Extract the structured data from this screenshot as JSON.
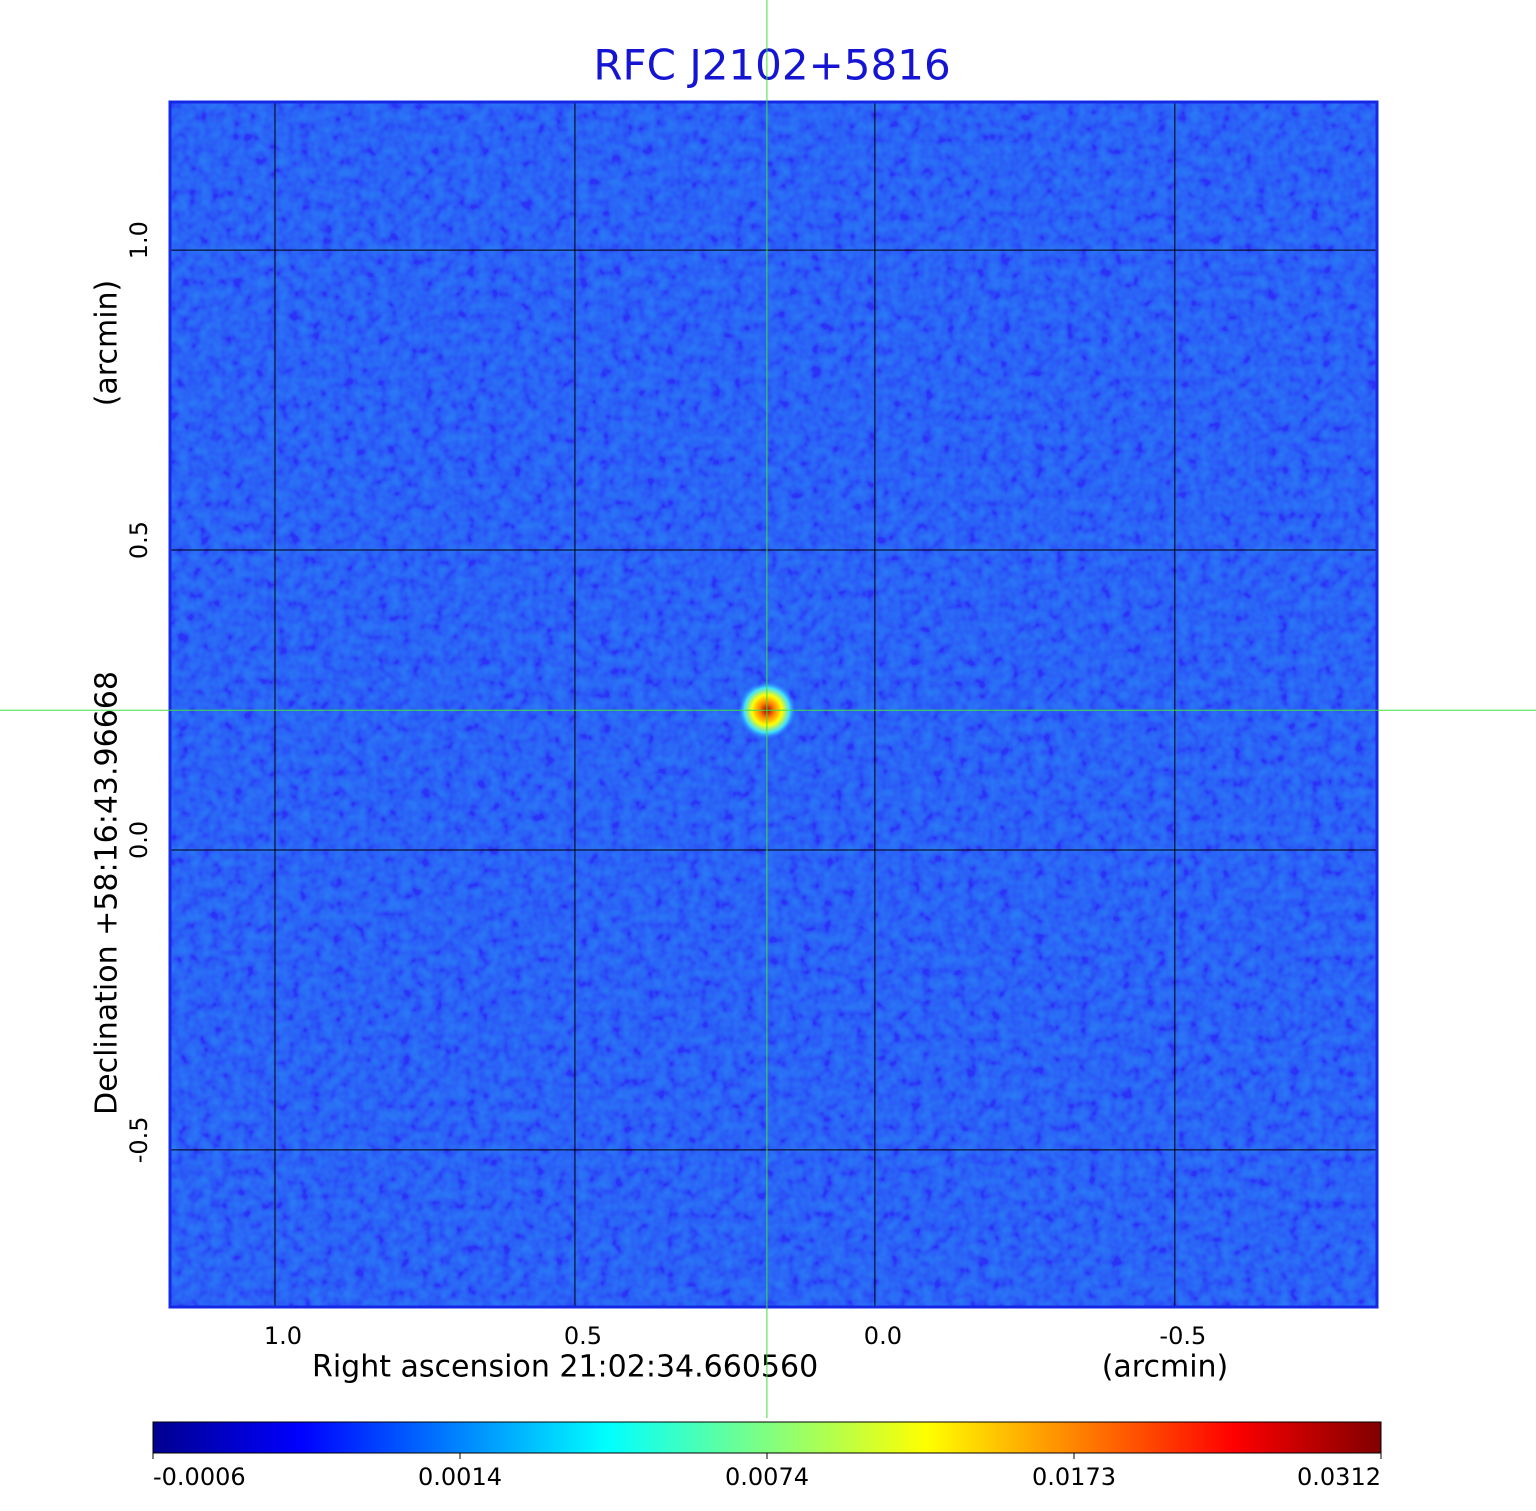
{
  "chart_data": {
    "type": "image",
    "title": "RFC J2102+5816",
    "x_label": "Right ascension  21:02:34.660560",
    "x_unit": "(arcmin)",
    "y_label": "Declination  +58:16:43.96668",
    "y_unit": "(arcmin)",
    "xlim": [
      1.175,
      -0.837
    ],
    "ylim": [
      -0.762,
      1.247
    ],
    "xticks": [
      {
        "value": 1,
        "label": "1.0"
      },
      0.5,
      {
        "value": 0,
        "label": "0.0"
      },
      -0.5
    ],
    "yticks": [
      -0.5,
      {
        "value": 0,
        "label": "0.0"
      },
      0.5,
      {
        "value": 1,
        "label": "1.0"
      }
    ],
    "grid": true,
    "source": {
      "x": 0.18,
      "y": 0.233
    },
    "colormap": "jet",
    "colorbar_ticks": [
      -0.0006,
      0.0014,
      0.0074,
      0.0173,
      0.0312
    ]
  }
}
